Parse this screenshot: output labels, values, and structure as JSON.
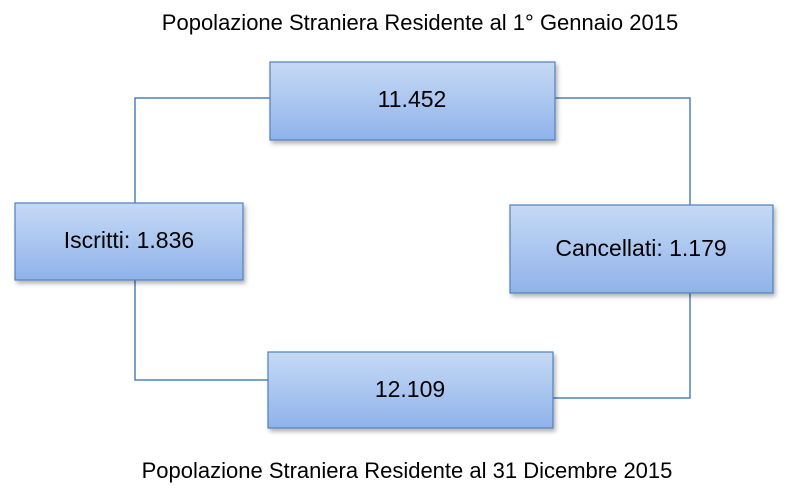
{
  "title": "Popolazione Straniera Residente al 1° Gennaio 2015",
  "nodes": [
    {
      "label": "11.452"
    },
    {
      "label": "Iscritti: 1.836"
    },
    {
      "label": "Cancellati: 1.179"
    },
    {
      "label": "12.109"
    }
  ],
  "footer": "Popolazione Straniera Residente al 31 Dicembre 2015"
}
